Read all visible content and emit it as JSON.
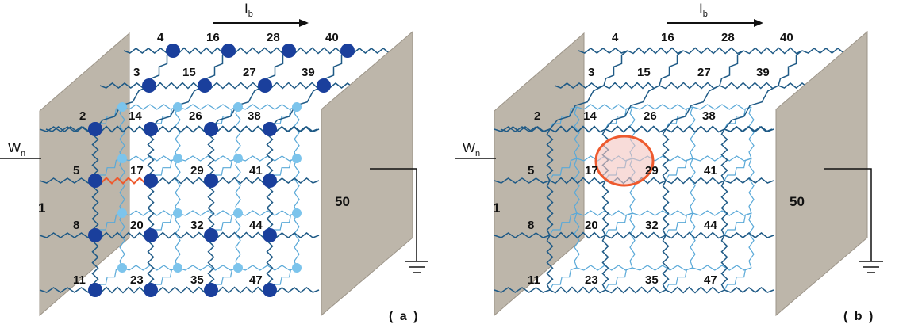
{
  "colors": {
    "plate": "#bdb6aa",
    "plate_edge": "#9c9488",
    "resistor_front": "#1f5a86",
    "resistor_back": "#5aa9d8",
    "node_front": "#1a3f9c",
    "node_back": "#7cc4ec",
    "defect": "#ee5a2e",
    "defect_fill": "#f4c4c0",
    "ground": "#111111"
  },
  "panels": [
    {
      "id": "a",
      "panel_label": "( a )",
      "current_symbol": "I",
      "current_subscript": "b",
      "wire_symbol": "W",
      "wire_subscript": "n",
      "left_plate_label": "1",
      "right_plate_label": "50",
      "show_nodes": true,
      "show_defect_circle": false,
      "node_labels": [
        "4",
        "16",
        "28",
        "40",
        "3",
        "15",
        "27",
        "39",
        "2",
        "14",
        "26",
        "38",
        "5",
        "17",
        "29",
        "41",
        "8",
        "20",
        "32",
        "44",
        "11",
        "23",
        "35",
        "47"
      ]
    },
    {
      "id": "b",
      "panel_label": "( b )",
      "current_symbol": "I",
      "current_subscript": "b",
      "wire_symbol": "W",
      "wire_subscript": "n",
      "left_plate_label": "1",
      "right_plate_label": "50",
      "show_nodes": false,
      "show_defect_circle": true,
      "node_labels": [
        "4",
        "16",
        "28",
        "40",
        "3",
        "15",
        "27",
        "39",
        "2",
        "14",
        "26",
        "38",
        "5",
        "17",
        "29",
        "41",
        "8",
        "20",
        "32",
        "44",
        "11",
        "23",
        "35",
        "47"
      ]
    }
  ]
}
